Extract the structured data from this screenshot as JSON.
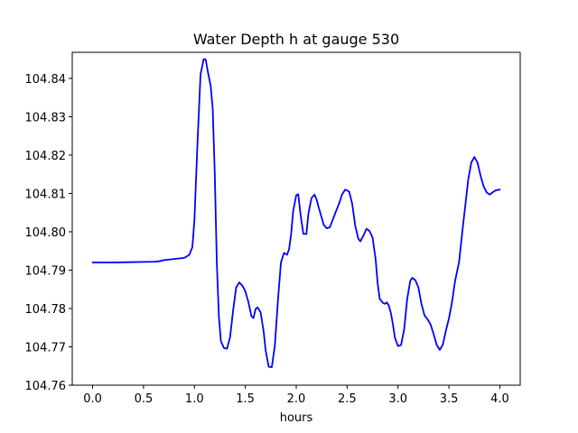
{
  "chart_data": {
    "type": "line",
    "title": "Water Depth h at gauge 530",
    "xlabel": "hours",
    "ylabel": "",
    "xlim": [
      -0.2,
      4.2
    ],
    "ylim": [
      104.76,
      104.8468
    ],
    "x_ticks": [
      0.0,
      0.5,
      1.0,
      1.5,
      2.0,
      2.5,
      3.0,
      3.5,
      4.0
    ],
    "x_tick_labels": [
      "0.0",
      "0.5",
      "1.0",
      "1.5",
      "2.0",
      "2.5",
      "3.0",
      "3.5",
      "4.0"
    ],
    "y_ticks": [
      104.76,
      104.77,
      104.78,
      104.79,
      104.8,
      104.81,
      104.82,
      104.83,
      104.84
    ],
    "y_tick_labels": [
      "104.76",
      "104.77",
      "104.78",
      "104.79",
      "104.80",
      "104.81",
      "104.82",
      "104.83",
      "104.84"
    ],
    "grid": false,
    "line_color": "#0000ff",
    "series": [
      {
        "x": [
          0.0,
          0.2,
          0.4,
          0.6,
          0.65,
          0.7,
          0.8,
          0.9,
          0.95,
          0.98,
          1.0,
          1.03,
          1.06,
          1.09,
          1.11,
          1.13,
          1.16,
          1.18,
          1.2,
          1.22,
          1.24,
          1.26,
          1.29,
          1.32,
          1.35,
          1.38,
          1.41,
          1.44,
          1.47,
          1.5,
          1.53,
          1.56,
          1.58,
          1.6,
          1.62,
          1.65,
          1.68,
          1.7,
          1.73,
          1.76,
          1.79,
          1.82,
          1.85,
          1.88,
          1.91,
          1.93,
          1.95,
          1.97,
          2.0,
          2.02,
          2.04,
          2.07,
          2.1,
          2.12,
          2.15,
          2.18,
          2.2,
          2.22,
          2.25,
          2.27,
          2.3,
          2.33,
          2.36,
          2.39,
          2.42,
          2.45,
          2.48,
          2.52,
          2.55,
          2.58,
          2.61,
          2.63,
          2.66,
          2.69,
          2.72,
          2.75,
          2.78,
          2.8,
          2.82,
          2.85,
          2.87,
          2.89,
          2.91,
          2.93,
          2.95,
          2.97,
          3.0,
          3.03,
          3.06,
          3.09,
          3.12,
          3.14,
          3.17,
          3.2,
          3.23,
          3.26,
          3.29,
          3.32,
          3.35,
          3.38,
          3.41,
          3.44,
          3.47,
          3.5,
          3.53,
          3.56,
          3.6,
          3.63,
          3.66,
          3.69,
          3.72,
          3.75,
          3.78,
          3.81,
          3.84,
          3.87,
          3.9,
          3.93,
          3.96,
          4.0
        ],
        "y": [
          104.792,
          104.792,
          104.7921,
          104.7922,
          104.7923,
          104.7926,
          104.7929,
          104.7932,
          104.794,
          104.796,
          104.803,
          104.823,
          104.841,
          104.845,
          104.845,
          104.842,
          104.838,
          104.832,
          104.815,
          104.792,
          104.778,
          104.7715,
          104.7697,
          104.7695,
          104.7725,
          104.7795,
          104.7855,
          104.7868,
          104.786,
          104.7845,
          104.7817,
          104.778,
          104.7775,
          104.7798,
          104.7803,
          104.779,
          104.774,
          104.769,
          104.7648,
          104.7647,
          104.7703,
          104.782,
          104.792,
          104.7945,
          104.794,
          104.7955,
          104.7994,
          104.8054,
          104.8095,
          104.8098,
          104.805,
          104.7995,
          104.7994,
          104.8048,
          104.8088,
          104.8097,
          104.8084,
          104.8064,
          104.8037,
          104.8018,
          104.8009,
          104.8012,
          104.8032,
          104.8053,
          104.8073,
          104.8097,
          104.811,
          104.8105,
          104.8073,
          104.8015,
          104.7982,
          104.7975,
          104.799,
          104.8008,
          104.8002,
          104.7985,
          104.7928,
          104.7865,
          104.7825,
          104.7815,
          104.7812,
          104.7816,
          104.7807,
          104.7788,
          104.7758,
          104.7723,
          104.7702,
          104.7705,
          104.7745,
          104.7825,
          104.7872,
          104.788,
          104.7874,
          104.7855,
          104.7812,
          104.7782,
          104.7772,
          104.7758,
          104.7733,
          104.7705,
          104.7692,
          104.7706,
          104.7742,
          104.7774,
          104.7816,
          104.7871,
          104.7922,
          104.7997,
          104.8067,
          104.8137,
          104.8181,
          104.8195,
          104.8181,
          104.8147,
          104.8119,
          104.8103,
          104.8097,
          104.8103,
          104.8108,
          104.811
        ]
      }
    ]
  }
}
